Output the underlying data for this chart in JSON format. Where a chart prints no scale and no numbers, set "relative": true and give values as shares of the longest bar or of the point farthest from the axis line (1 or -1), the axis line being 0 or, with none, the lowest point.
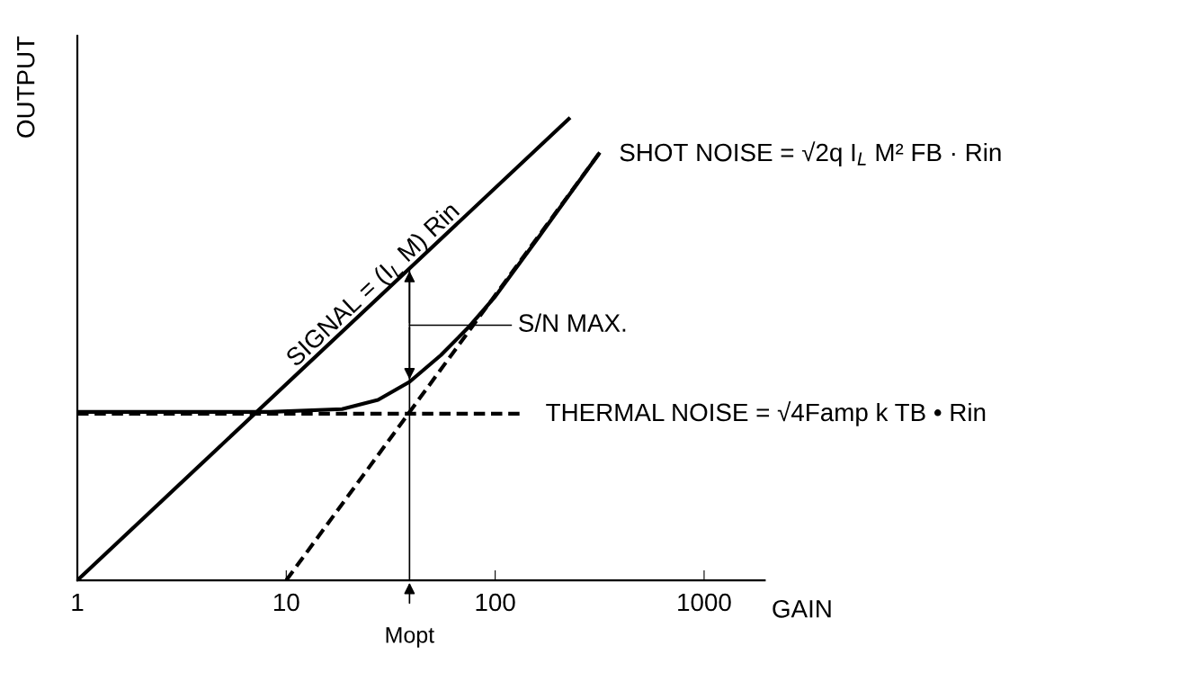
{
  "chart_data": {
    "type": "line",
    "relative": true,
    "xlabel": "GAIN",
    "ylabel": "OUTPUT",
    "log": "x",
    "xlim": [
      1,
      1950
    ],
    "xticks": [
      1,
      10,
      100,
      1000
    ],
    "grid": false,
    "marker": "none",
    "series": [
      {
        "name": "SIGNAL = (I$_{L}$ M) Rin",
        "color": "#000000",
        "line_style": "solid",
        "x": [
          1,
          225
        ],
        "values": [
          0,
          1
        ]
      },
      {
        "name": "THERMAL NOISE = √4Famp k TB • Rin",
        "color": "#000000",
        "line_style": "dashed",
        "x": [
          1,
          134
        ],
        "values": [
          0.361,
          0.361
        ]
      },
      {
        "name": "SHOT NOISE = √2q I$_{L}$ M² FB · Rin",
        "color": "#000000",
        "line_style": "dashed",
        "x": [
          10,
          313
        ],
        "values": [
          0,
          0.924
        ]
      },
      {
        "color": "#000000",
        "line_style": "solid",
        "x": [
          1,
          8.37,
          18.5,
          27.5,
          38.9,
          55,
          74,
          100,
          164,
          313
        ],
        "values": [
          0.365,
          0.365,
          0.371,
          0.391,
          0.43,
          0.488,
          0.547,
          0.615,
          0.748,
          0.924
        ]
      }
    ],
    "ref_lines": [
      {
        "axis": "x",
        "value": 38.9,
        "color": "#000000"
      }
    ],
    "annotations": [
      "S/N MAX.",
      {
        "text": "Mopt",
        "x": 38.9,
        "y": 0
      }
    ]
  }
}
